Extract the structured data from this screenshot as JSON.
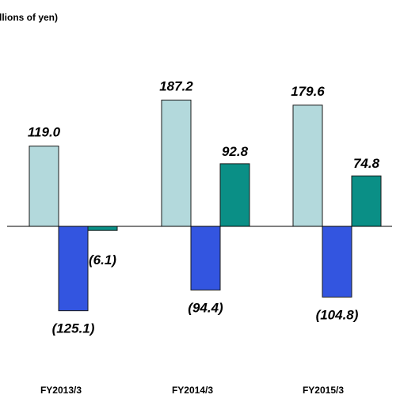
{
  "chart_data": {
    "type": "bar",
    "unit_label": "llions of yen)",
    "categories": [
      "FY2013/3",
      "FY2014/3",
      "FY2015/3"
    ],
    "series": [
      {
        "values": [
          119.0,
          187.2,
          179.6
        ],
        "labels": [
          "119.0",
          "187.2",
          "179.6"
        ],
        "color": "#b3d9dc",
        "edge": "#1a1a1a"
      },
      {
        "values": [
          -125.1,
          -94.4,
          -104.8
        ],
        "labels": [
          "(125.1)",
          "(94.4)",
          "(104.8)"
        ],
        "color": "#3355e0",
        "edge": "#1a1a1a"
      },
      {
        "values": [
          -6.1,
          92.8,
          74.8
        ],
        "labels": [
          "(6.1)",
          "92.8",
          "74.8"
        ],
        "color": "#0a8f86",
        "edge": "#1a1a1a"
      }
    ],
    "ylim": [
      -160,
      200
    ],
    "baseline": 0,
    "grid": false,
    "legend": "none"
  }
}
